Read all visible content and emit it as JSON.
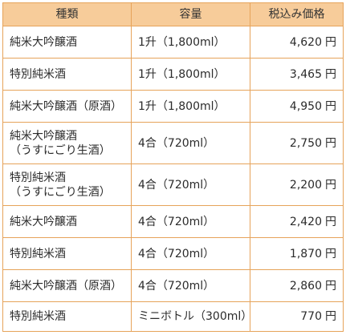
{
  "table": {
    "headers": {
      "name": "種類",
      "volume": "容量",
      "price": "税込み価格"
    },
    "currency_unit": "円",
    "rows": [
      {
        "name": "純米大吟醸酒",
        "volume": "1升（1,800ml）",
        "price": "4,620"
      },
      {
        "name": "特別純米酒",
        "volume": "1升（1,800ml）",
        "price": "3,465"
      },
      {
        "name": "純米大吟醸酒（原酒）",
        "volume": "1升（1,800ml）",
        "price": "4,950"
      },
      {
        "name": "純米大吟醸酒\n（うすにごり生酒）",
        "volume": "4合（720ml）",
        "price": "2,750"
      },
      {
        "name": "特別純米酒\n（うすにごり生酒）",
        "volume": "4合（720ml）",
        "price": "2,200"
      },
      {
        "name": "純米大吟醸酒",
        "volume": "4合（720ml）",
        "price": "2,420"
      },
      {
        "name": "特別純米酒",
        "volume": "4合（720ml）",
        "price": "1,870"
      },
      {
        "name": "純米大吟醸酒（原酒）",
        "volume": "4合（720ml）",
        "price": "2,860"
      },
      {
        "name": "特別純米酒",
        "volume": "ミニボトル（300ml）",
        "price": "770"
      }
    ]
  },
  "colors": {
    "header_background": "#f7cc9a",
    "border": "#e6a35a",
    "text": "#2b2b2b"
  }
}
